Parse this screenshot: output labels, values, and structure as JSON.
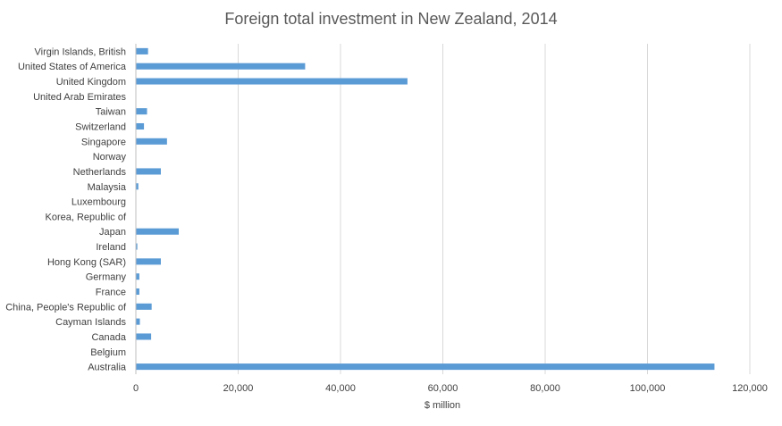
{
  "chart_data": {
    "type": "bar",
    "orientation": "horizontal",
    "title": "Foreign total investment in New Zealand, 2014",
    "xlabel": "$ million",
    "ylabel": "",
    "xlim": [
      0,
      120000
    ],
    "x_ticks": [
      "0",
      "20,000",
      "40,000",
      "60,000",
      "80,000",
      "100,000",
      "120,000"
    ],
    "x_tick_values": [
      0,
      20000,
      40000,
      60000,
      80000,
      100000,
      120000
    ],
    "grid": true,
    "legend": "none",
    "bar_color": "#5b9bd5",
    "categories": [
      "Virgin Islands, British",
      "United States of America",
      "United Kingdom",
      "United Arab Emirates",
      "Taiwan",
      "Switzerland",
      "Singapore",
      "Norway",
      "Netherlands",
      "Malaysia",
      "Luxembourg",
      "Korea, Republic of",
      "Japan",
      "Ireland",
      "Hong Kong (SAR)",
      "Germany",
      "France",
      "China, People's Republic of",
      "Cayman Islands",
      "Canada",
      "Belgium",
      "Australia"
    ],
    "values": [
      2300,
      33000,
      53000,
      0,
      2100,
      1500,
      6000,
      0,
      4800,
      400,
      0,
      0,
      8300,
      200,
      4800,
      600,
      600,
      3000,
      700,
      2900,
      0,
      113000
    ]
  }
}
